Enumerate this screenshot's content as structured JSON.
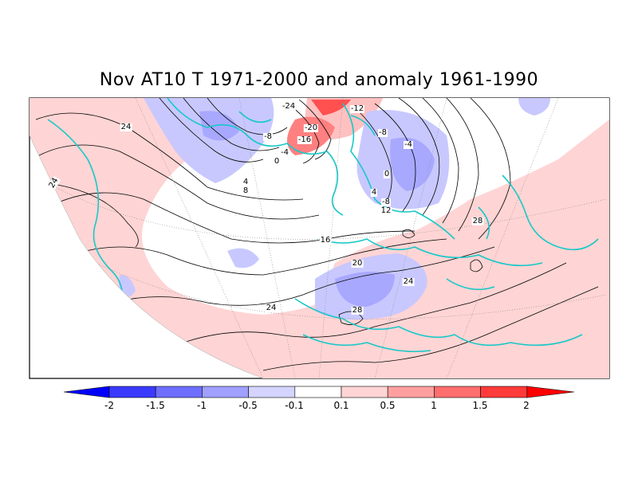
{
  "title": "Nov AT10 T 1971-2000 and anomaly 1961-1990",
  "contour_labels": [
    "24",
    "24",
    "-24",
    "-12",
    "-20",
    "-16",
    "-8",
    "-8",
    "-4",
    "-4",
    "0",
    "0",
    "4",
    "4",
    "8",
    "-8",
    "12",
    "16",
    "20",
    "24",
    "28",
    "28",
    "24"
  ],
  "colorbar": {
    "labels": [
      "-2",
      "-1.5",
      "-1",
      "-0.5",
      "-0.1",
      "0.1",
      "0.5",
      "1",
      "1.5",
      "2"
    ],
    "colors": [
      "#0000ff",
      "#3a3aff",
      "#6e6eff",
      "#a0a0ff",
      "#d4d4ff",
      "#ffffff",
      "#ffd4d4",
      "#ffa0a0",
      "#ff6e6e",
      "#ff3a3a",
      "#ff0000"
    ]
  },
  "colors": {
    "coastline": "#18c8c8",
    "positive_anomaly": "#ffd4d4",
    "negative_anomaly": "#c8c8ff",
    "contour": "#000000"
  }
}
